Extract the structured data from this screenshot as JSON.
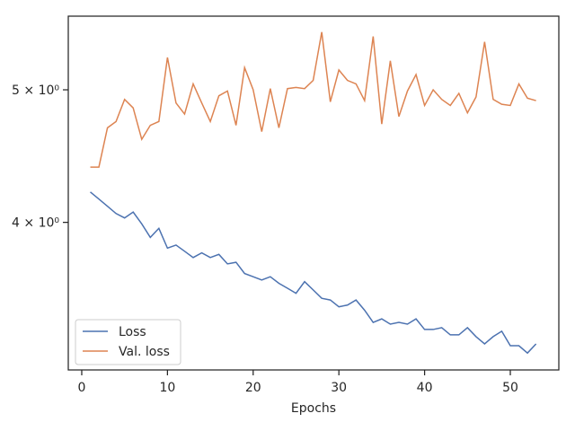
{
  "chart_data": {
    "type": "line",
    "xlabel": "Epochs",
    "log_y": true,
    "legend": "lower left",
    "x": [
      1,
      2,
      3,
      4,
      5,
      6,
      7,
      8,
      9,
      10,
      11,
      12,
      13,
      14,
      15,
      16,
      17,
      18,
      19,
      20,
      21,
      22,
      23,
      24,
      25,
      26,
      27,
      28,
      29,
      30,
      31,
      32,
      33,
      34,
      35,
      36,
      37,
      38,
      39,
      40,
      41,
      42,
      43,
      44,
      45,
      46,
      47,
      48,
      49,
      50,
      51,
      52,
      53
    ],
    "series": [
      {
        "name": "Loss",
        "color": "#4c72b0",
        "values": [
          4.21,
          4.16,
          4.11,
          4.06,
          4.03,
          4.07,
          3.99,
          3.9,
          3.96,
          3.83,
          3.85,
          3.81,
          3.77,
          3.8,
          3.77,
          3.79,
          3.73,
          3.74,
          3.67,
          3.65,
          3.63,
          3.65,
          3.61,
          3.58,
          3.55,
          3.62,
          3.57,
          3.52,
          3.51,
          3.47,
          3.48,
          3.51,
          3.45,
          3.38,
          3.4,
          3.37,
          3.38,
          3.37,
          3.4,
          3.34,
          3.34,
          3.35,
          3.31,
          3.31,
          3.35,
          3.3,
          3.26,
          3.3,
          3.33,
          3.25,
          3.25,
          3.21,
          3.26
        ]
      },
      {
        "name": "Val. loss",
        "color": "#dd8452",
        "values": [
          4.39,
          4.39,
          4.69,
          4.74,
          4.92,
          4.85,
          4.6,
          4.71,
          4.74,
          5.28,
          4.89,
          4.8,
          5.05,
          4.89,
          4.74,
          4.95,
          4.99,
          4.71,
          5.19,
          5.0,
          4.66,
          5.01,
          4.69,
          5.01,
          5.02,
          5.01,
          5.08,
          5.51,
          4.9,
          5.17,
          5.08,
          5.05,
          4.91,
          5.47,
          4.72,
          5.25,
          4.78,
          4.99,
          5.13,
          4.87,
          5.0,
          4.92,
          4.87,
          4.97,
          4.81,
          4.94,
          5.42,
          4.92,
          4.88,
          4.87,
          5.05,
          4.93,
          4.91
        ]
      }
    ],
    "xlim": [
      -1.57,
      55.66
    ],
    "xticks": [
      0,
      10,
      20,
      30,
      40,
      50
    ],
    "ylim": [
      3.12,
      5.66
    ],
    "yticks": [
      {
        "value": 4,
        "label": "4 × 10⁰"
      },
      {
        "value": 5,
        "label": "5 × 10⁰"
      }
    ]
  }
}
